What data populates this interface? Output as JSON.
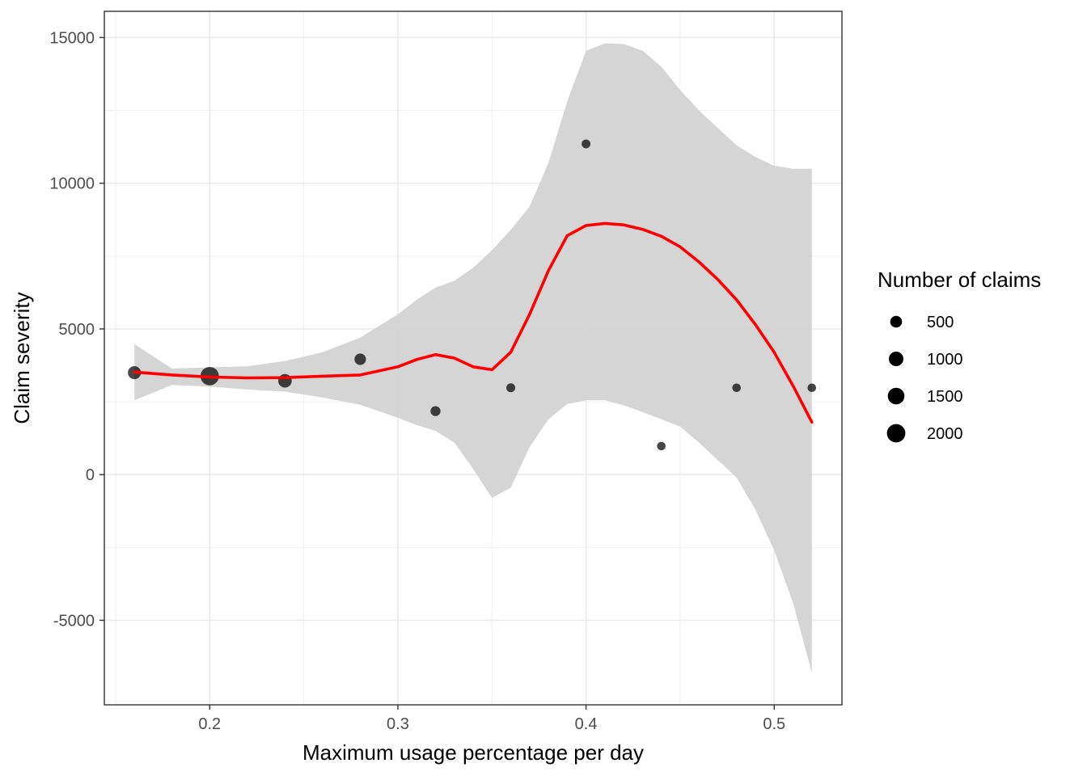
{
  "chart_data": {
    "type": "scatter",
    "xlabel": "Maximum usage percentage per day",
    "ylabel": "Claim severity",
    "xlim": [
      0.144,
      0.536
    ],
    "ylim": [
      -7900,
      15900
    ],
    "x_ticks": [
      0.2,
      0.3,
      0.4,
      0.5
    ],
    "x_tick_labels": [
      "0.2",
      "0.3",
      "0.4",
      "0.5"
    ],
    "y_ticks": [
      -5000,
      0,
      5000,
      10000,
      15000
    ],
    "y_tick_labels": [
      "-5000",
      "0",
      "5000",
      "10000",
      "15000"
    ],
    "x_minor_ticks": [
      0.15,
      0.25,
      0.35,
      0.45
    ],
    "y_minor_ticks": [
      -2500,
      2500,
      7500,
      12500
    ],
    "grid": true,
    "points": [
      {
        "x": 0.16,
        "y": 3500,
        "claims": 700
      },
      {
        "x": 0.2,
        "y": 3380,
        "claims": 2000
      },
      {
        "x": 0.24,
        "y": 3220,
        "claims": 800
      },
      {
        "x": 0.28,
        "y": 3960,
        "claims": 450
      },
      {
        "x": 0.32,
        "y": 2180,
        "claims": 260
      },
      {
        "x": 0.36,
        "y": 2980,
        "claims": 160
      },
      {
        "x": 0.4,
        "y": 11350,
        "claims": 150
      },
      {
        "x": 0.44,
        "y": 980,
        "claims": 130
      },
      {
        "x": 0.48,
        "y": 2980,
        "claims": 130
      },
      {
        "x": 0.52,
        "y": 2980,
        "claims": 130
      }
    ],
    "smooth_line": {
      "color": "#ff0000",
      "x": [
        0.16,
        0.18,
        0.2,
        0.22,
        0.24,
        0.26,
        0.28,
        0.3,
        0.31,
        0.32,
        0.33,
        0.34,
        0.35,
        0.36,
        0.37,
        0.38,
        0.39,
        0.4,
        0.41,
        0.42,
        0.43,
        0.44,
        0.45,
        0.46,
        0.47,
        0.48,
        0.49,
        0.5,
        0.51,
        0.52
      ],
      "y": [
        3520,
        3420,
        3350,
        3320,
        3330,
        3380,
        3420,
        3700,
        3950,
        4120,
        4000,
        3700,
        3600,
        4200,
        5500,
        7000,
        8200,
        8550,
        8620,
        8570,
        8420,
        8180,
        7820,
        7300,
        6700,
        6000,
        5150,
        4200,
        3050,
        1800
      ]
    },
    "confidence_band": {
      "color": "#d3d3d3",
      "x": [
        0.16,
        0.18,
        0.2,
        0.22,
        0.24,
        0.26,
        0.28,
        0.3,
        0.31,
        0.32,
        0.33,
        0.34,
        0.35,
        0.36,
        0.37,
        0.38,
        0.39,
        0.4,
        0.41,
        0.42,
        0.43,
        0.44,
        0.45,
        0.46,
        0.47,
        0.48,
        0.49,
        0.5,
        0.51,
        0.52
      ],
      "upper": [
        4480,
        3640,
        3680,
        3720,
        3900,
        4200,
        4700,
        5500,
        6000,
        6420,
        6650,
        7100,
        7700,
        8400,
        9200,
        10700,
        12800,
        14550,
        14800,
        14780,
        14550,
        14000,
        13200,
        12500,
        11900,
        11300,
        10900,
        10600,
        10500,
        10500
      ],
      "lower": [
        2550,
        3080,
        3020,
        2920,
        2850,
        2650,
        2400,
        1950,
        1700,
        1500,
        1100,
        200,
        -800,
        -450,
        950,
        1900,
        2420,
        2550,
        2550,
        2380,
        2150,
        1900,
        1650,
        1100,
        500,
        -100,
        -1200,
        -2600,
        -4400,
        -6800
      ]
    },
    "legend": {
      "title": "Number of claims",
      "position": "right",
      "entries": [
        {
          "label": "500",
          "claims": 500
        },
        {
          "label": "1000",
          "claims": 1000
        },
        {
          "label": "1500",
          "claims": 1500
        },
        {
          "label": "2000",
          "claims": 2000
        }
      ]
    }
  }
}
